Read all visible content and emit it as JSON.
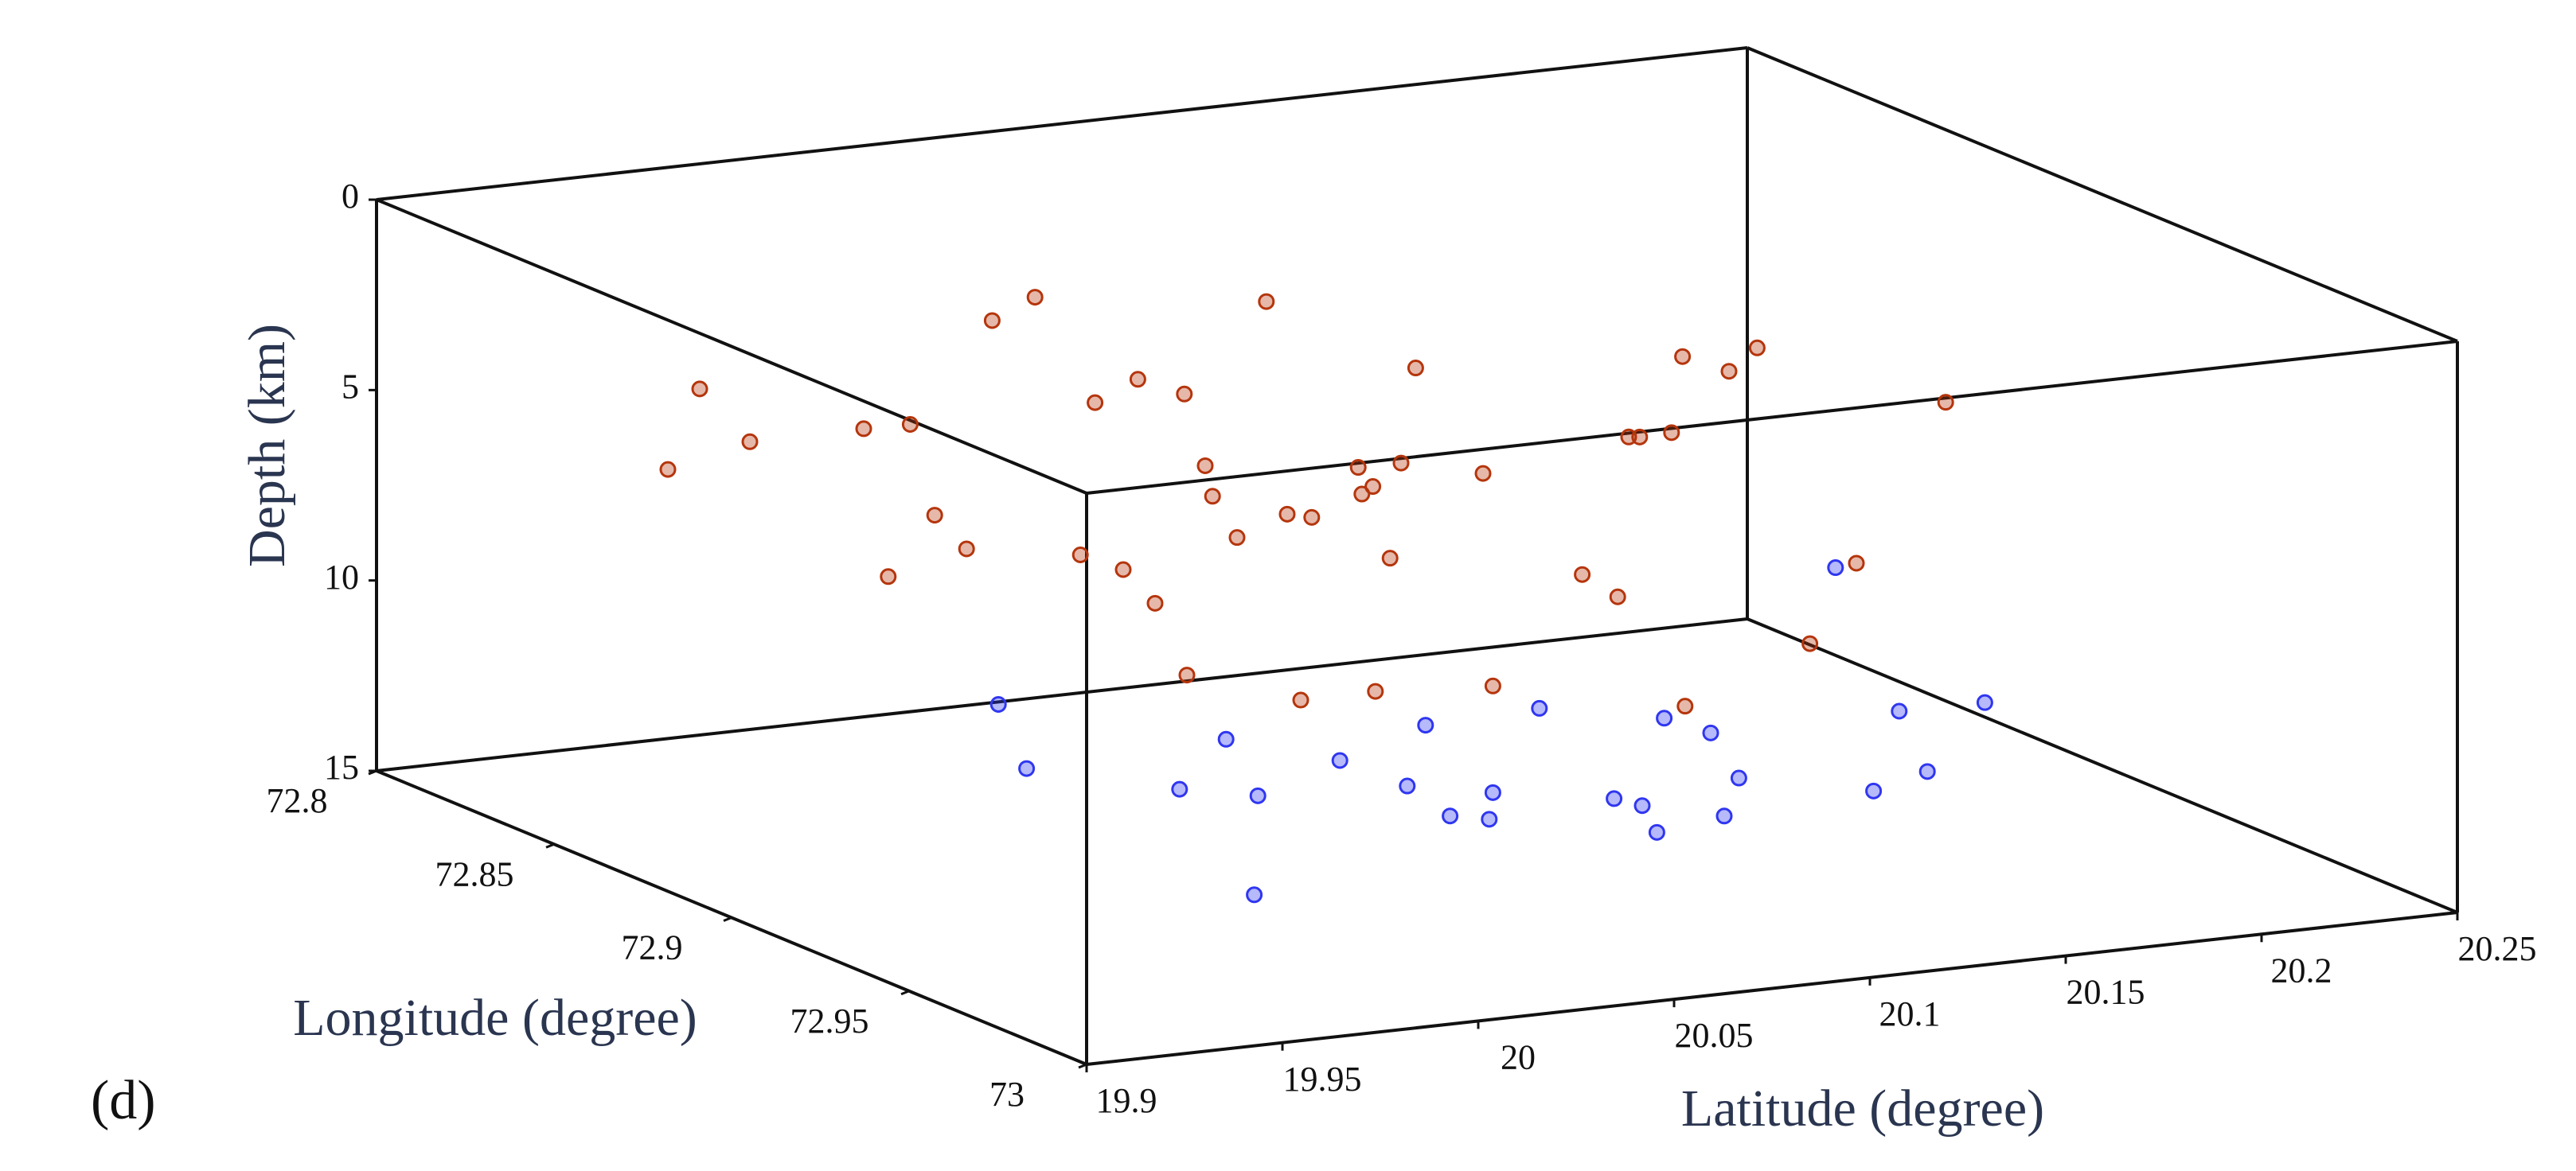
{
  "chart_data": {
    "type": "scatter3d",
    "panel_label": "(d)",
    "x_label": "Latitude (degree)",
    "y_label": "Longitude (degree)",
    "z_label": "Depth (km)",
    "xlim": [
      19.9,
      20.25
    ],
    "xticks": [
      19.9,
      19.95,
      20,
      20.05,
      20.1,
      20.15,
      20.2,
      20.25
    ],
    "ylim": [
      72.8,
      73
    ],
    "yticks": [
      72.8,
      72.85,
      72.9,
      72.95,
      73
    ],
    "zlim": [
      0,
      15
    ],
    "zticks": [
      0,
      5,
      10,
      15
    ],
    "z_inverted": true,
    "series": [
      {
        "color": "#b5350c",
        "x": [
          19.95,
          19.97,
          20.0,
          20.02,
          20.05,
          20.08,
          20.1,
          20.12,
          20.15,
          19.98,
          20.03,
          20.06,
          20.09,
          20.0,
          19.96,
          20.04,
          20.07,
          20.11,
          20.14,
          20.17,
          20.2,
          19.99,
          20.01,
          20.03,
          20.05,
          19.94,
          19.92,
          20.13,
          20.16,
          20.18,
          20.02,
          20.08,
          20.0,
          19.97,
          20.06,
          20.1,
          20.04,
          20.12,
          19.98,
          20.21,
          19.91,
          20.09,
          20.05,
          20.03,
          20.07
        ],
        "y": [
          72.85,
          72.88,
          72.9,
          72.87,
          72.92,
          72.89,
          72.86,
          72.91,
          72.88,
          72.94,
          72.83,
          72.9,
          72.93,
          72.95,
          72.9,
          72.86,
          72.84,
          72.88,
          72.9,
          72.87,
          72.85,
          72.92,
          72.96,
          72.89,
          72.82,
          72.9,
          72.86,
          72.95,
          72.93,
          72.88,
          72.91,
          72.97,
          72.84,
          72.86,
          72.88,
          72.83,
          72.96,
          72.85,
          72.91,
          72.9,
          72.88,
          72.94,
          72.87,
          72.92,
          72.89
        ],
        "z": [
          5,
          6,
          7,
          4,
          6.5,
          5.5,
          7.5,
          4.5,
          6,
          8,
          3.5,
          5,
          7,
          8.5,
          6,
          4,
          5.5,
          6.5,
          5,
          4.5,
          6,
          7,
          8,
          5,
          3.5,
          6.5,
          5,
          8.5,
          7.5,
          4,
          6,
          8.8,
          5.5,
          4.5,
          7,
          3.8,
          8.2,
          5,
          6,
          5,
          2,
          7.2,
          6.8,
          5.2,
          6.2
        ]
      },
      {
        "color": "#2f36f0",
        "x": [
          19.93,
          19.96,
          19.99,
          20.02,
          20.05,
          20.08,
          20.12,
          20.15,
          20.2,
          20.0,
          19.97,
          20.04,
          20.1,
          20.18,
          20.06,
          19.95,
          20.01,
          20.09,
          20.13,
          20.22,
          19.98,
          20.07,
          20.03,
          20.16,
          20.11
        ],
        "y": [
          72.95,
          72.96,
          72.94,
          72.97,
          72.93,
          72.95,
          72.92,
          72.9,
          72.88,
          72.98,
          72.97,
          72.96,
          72.94,
          72.92,
          72.98,
          72.92,
          72.95,
          72.97,
          72.93,
          72.9,
          72.96,
          72.94,
          72.97,
          72.95,
          72.99
        ],
        "z": [
          9.5,
          10,
          9.8,
          11,
          10.5,
          12,
          11.5,
          13,
          10,
          9.6,
          12.5,
          11,
          13.5,
          12,
          10.8,
          9.2,
          10.2,
          11.8,
          12.8,
          13,
          10.4,
          9.9,
          11.2,
          12.2,
          10.6
        ]
      }
    ]
  }
}
